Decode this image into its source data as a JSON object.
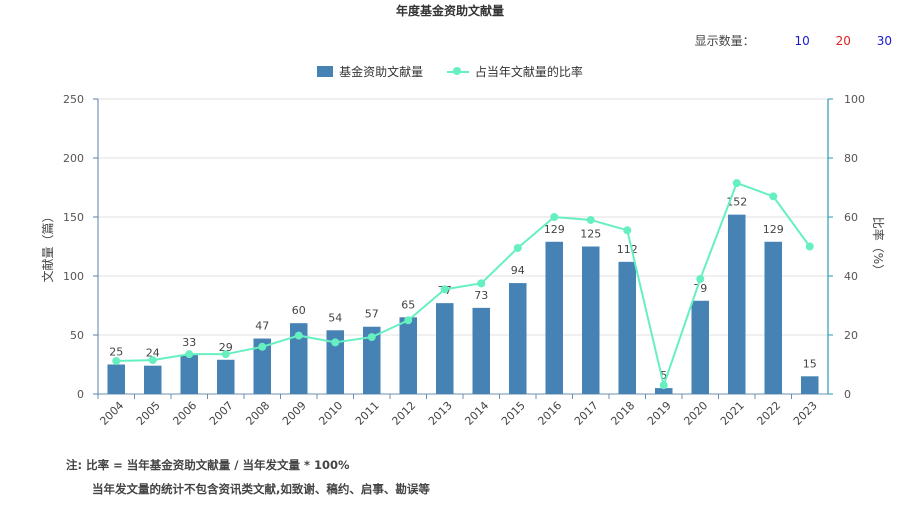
{
  "chart_data": {
    "type": "bar",
    "title": "年度基金资助文献量",
    "categories": [
      "2004",
      "2005",
      "2006",
      "2007",
      "2008",
      "2009",
      "2010",
      "2011",
      "2012",
      "2013",
      "2014",
      "2015",
      "2016",
      "2017",
      "2018",
      "2019",
      "2020",
      "2021",
      "2022",
      "2023"
    ],
    "series": [
      {
        "name": "基金资助文献量",
        "type": "bar",
        "axis": "left",
        "values": [
          25,
          24,
          33,
          29,
          47,
          60,
          54,
          57,
          65,
          77,
          73,
          94,
          129,
          125,
          112,
          5,
          79,
          152,
          129,
          15
        ]
      },
      {
        "name": "占当年文献量的比率",
        "type": "line",
        "axis": "right",
        "values": [
          11.2,
          11.5,
          13.5,
          13.5,
          16,
          19.8,
          17.5,
          19.3,
          25,
          35.5,
          37.5,
          49.5,
          60,
          59,
          55.5,
          3,
          39,
          71.5,
          67,
          50
        ]
      }
    ],
    "ylabel": "文献量（篇）",
    "y2label": "比率（%）",
    "ylim": [
      0,
      250
    ],
    "y2lim": [
      0,
      100
    ],
    "yticks": [
      "0",
      "50",
      "100",
      "150",
      "200",
      "250"
    ],
    "y2ticks": [
      "0",
      "20",
      "40",
      "60",
      "80",
      "100"
    ],
    "grid": true,
    "legend_position": "top-center",
    "colors": {
      "bar": "#4682b4",
      "line": "#66f0c0",
      "axis_right": "#2a9ab8",
      "axis_left": "#5a7fa8"
    }
  },
  "display_count": {
    "label": "显示数量：",
    "options": [
      {
        "label": "10",
        "color": "#1a1acc"
      },
      {
        "label": "20",
        "color": "#dd2222"
      },
      {
        "label": "30",
        "color": "#1a1acc"
      }
    ]
  },
  "notes": {
    "line1": "注:  比率 = 当年基金资助文献量 / 当年发文量 * 100%",
    "line2": "当年发文量的统计不包含资讯类文献,如致谢、稿约、启事、勘误等"
  }
}
